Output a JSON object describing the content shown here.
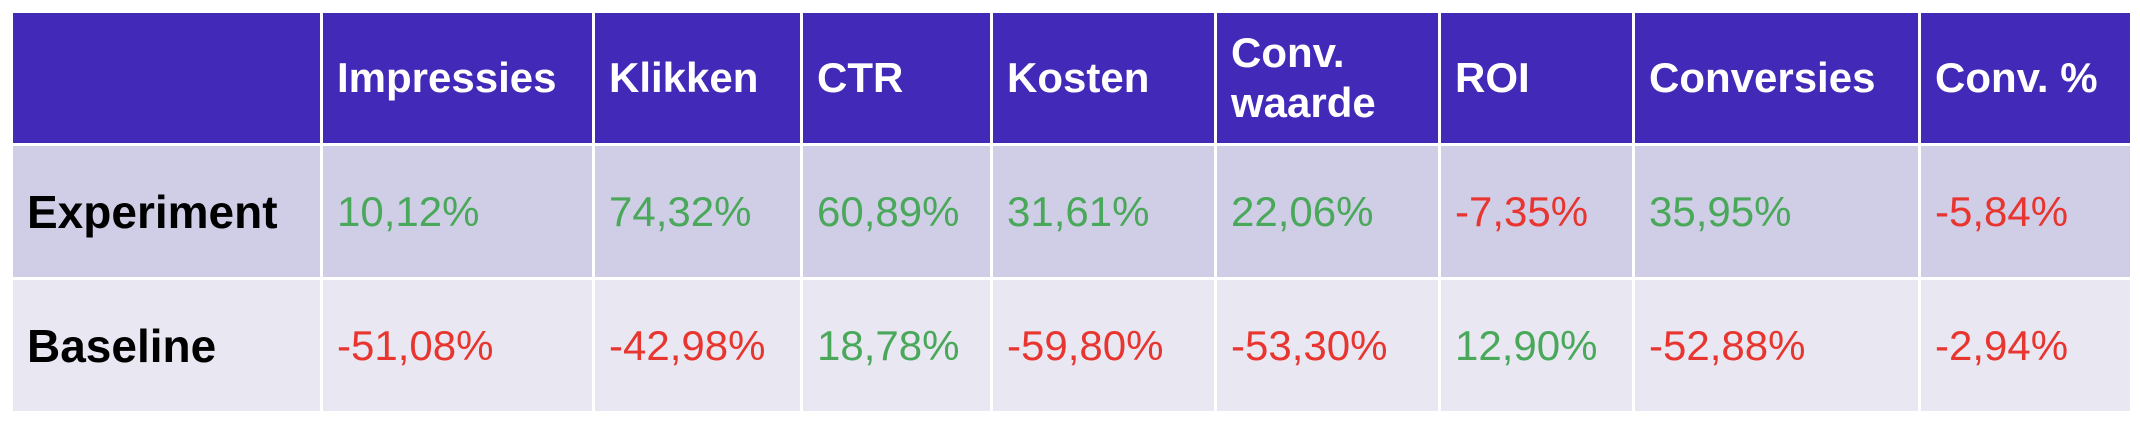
{
  "chart_data": {
    "type": "table",
    "columns": [
      "",
      "Impressies",
      "Klikken",
      "CTR",
      "Kosten",
      "Conv. waarde",
      "ROI",
      "Conversies",
      "Conv. %"
    ],
    "rows": [
      {
        "label": "Experiment",
        "cells": [
          "10,12%",
          "74,32%",
          "60,89%",
          "31,61%",
          "22,06%",
          "-7,35%",
          "35,95%",
          "-5,84%"
        ],
        "values": [
          10.12,
          74.32,
          60.89,
          31.61,
          22.06,
          -7.35,
          35.95,
          -5.84
        ]
      },
      {
        "label": "Baseline",
        "cells": [
          "-51,08%",
          "-42,98%",
          "18,78%",
          "-59,80%",
          "-53,30%",
          "12,90%",
          "-52,88%",
          "-2,94%"
        ],
        "values": [
          -51.08,
          -42.98,
          18.78,
          -59.8,
          -53.3,
          12.9,
          -52.88,
          -2.94
        ]
      }
    ],
    "colors": {
      "header_bg": "#4229b8",
      "header_text": "#ffffff",
      "row_experiment_bg": "#d0cde7",
      "row_baseline_bg": "#e8e7f2",
      "positive": "#4aa85a",
      "negative": "#e8352f"
    }
  }
}
